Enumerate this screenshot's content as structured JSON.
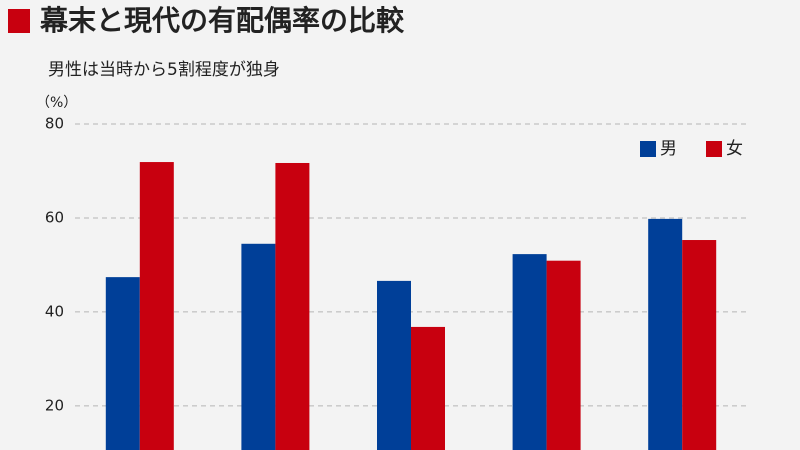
{
  "chart_data": {
    "type": "bar",
    "title": "幕末と現代の有配偶率の比較",
    "subtitle": "男性は当時から5割程度が独身",
    "y_unit": "（%）",
    "categories": [
      null,
      null,
      null,
      null,
      null
    ],
    "series": [
      {
        "name": "男",
        "color": "#003f98",
        "values": [
          47.4,
          54.5,
          46.6,
          52.3,
          59.8
        ]
      },
      {
        "name": "女",
        "color": "#c8000f",
        "values": [
          71.9,
          71.7,
          36.8,
          50.9,
          55.3
        ]
      }
    ],
    "ylim": [
      10.6,
      80
    ],
    "yticks": [
      20,
      40,
      60,
      80
    ],
    "grid": true,
    "legend": "top-right"
  }
}
